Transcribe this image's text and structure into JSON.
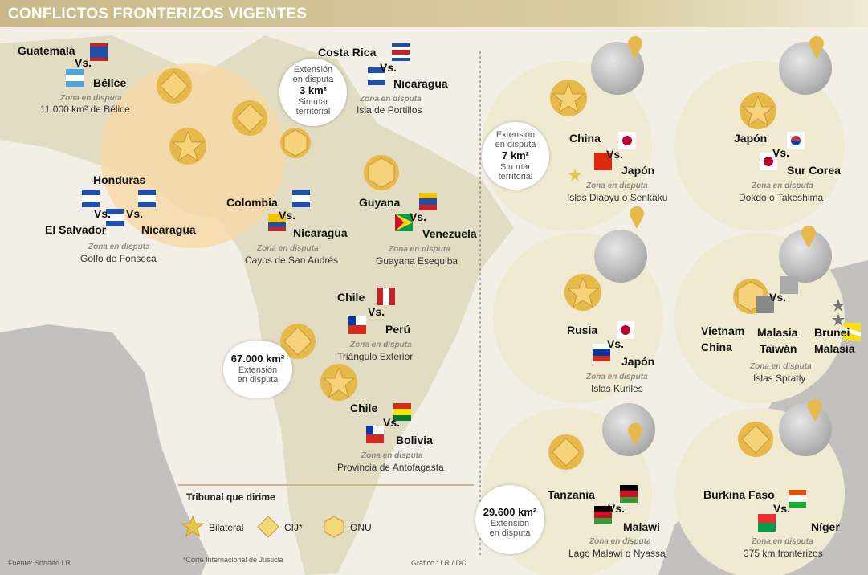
{
  "title": "CONFLICTOS FRONTERIZOS VIGENTES",
  "labels": {
    "vs": "Vs.",
    "zona": "Zona en disputa"
  },
  "conflicts": {
    "guatemala": {
      "a": "Guatemala",
      "b": "Bélice",
      "zona": "11.000 km² de Bélice"
    },
    "costarica": {
      "a": "Costa Rica",
      "b": "Nicaragua",
      "zona": "Isla de Portillos"
    },
    "honduras": {
      "a": "Honduras",
      "b": "El Salvador",
      "c": "Nicaragua",
      "zona": "Golfo de Fonseca"
    },
    "colombia": {
      "a": "Colombia",
      "b": "Nicaragua",
      "zona": "Cayos de San Andrés"
    },
    "guyana": {
      "a": "Guyana",
      "b": "Venezuela",
      "zona": "Guayana Esequiba"
    },
    "chileperu": {
      "a": "Chile",
      "b": "Perú",
      "zona": "Triángulo Exterior"
    },
    "chilebolivia": {
      "a": "Chile",
      "b": "Bolivia",
      "zona": "Provincia de Antofagasta"
    },
    "china": {
      "a": "China",
      "b": "Japón",
      "zona": "Islas Diaoyu o Senkaku"
    },
    "japon": {
      "a": "Japón",
      "b": "Sur Corea",
      "zona": "Dokdo o Takeshima"
    },
    "rusia": {
      "a": "Rusia",
      "b": "Japón",
      "zona": "Islas Kuriles"
    },
    "spratly": {
      "a": "Vietnam",
      "a2": "China",
      "b": "Malasia",
      "b2": "Taiwán",
      "c": "Brunei",
      "c2": "Malasia",
      "zona": "Islas Spratly"
    },
    "tanzania": {
      "a": "Tanzania",
      "b": "Malawi",
      "zona": "Lago Malawi o Nyassa"
    },
    "burkina": {
      "a": "Burkina Faso",
      "b": "Níger",
      "zona": "375 km fronterizos"
    }
  },
  "bubbles": {
    "costarica": {
      "l1": "Extensión",
      "l2": "en disputa",
      "val": "3 km²",
      "l3": "Sin mar",
      "l4": "territorial"
    },
    "china": {
      "l1": "Extensión",
      "l2": "en disputa",
      "val": "7 km²",
      "l3": "Sin mar",
      "l4": "territorial"
    },
    "chile": {
      "val": "67.000 km²",
      "l1": "Extensión",
      "l2": "en disputa"
    },
    "tanzania": {
      "val": "29.600 km²",
      "l1": "Extensión",
      "l2": "en disputa"
    }
  },
  "legend": {
    "title": "Tribunal que dirime",
    "items": [
      "Bilateral",
      "CIJ*",
      "ONU"
    ],
    "footnote": "*Corte Internacional de Justicia"
  },
  "footer": {
    "source": "Fuente: Sondeo LR",
    "credit": "Gráfico : LR / DC"
  },
  "colors": {
    "gold": "#e6b94a",
    "goldDark": "#c99a2e",
    "mapLand": "#e2dcc3",
    "mapRegion": "#f4d6a8",
    "circle": "#f1ead3"
  },
  "icons": [
    "star-icon",
    "diamond-icon",
    "hexagon-icon",
    "globe-icon",
    "map-pin-icon"
  ]
}
